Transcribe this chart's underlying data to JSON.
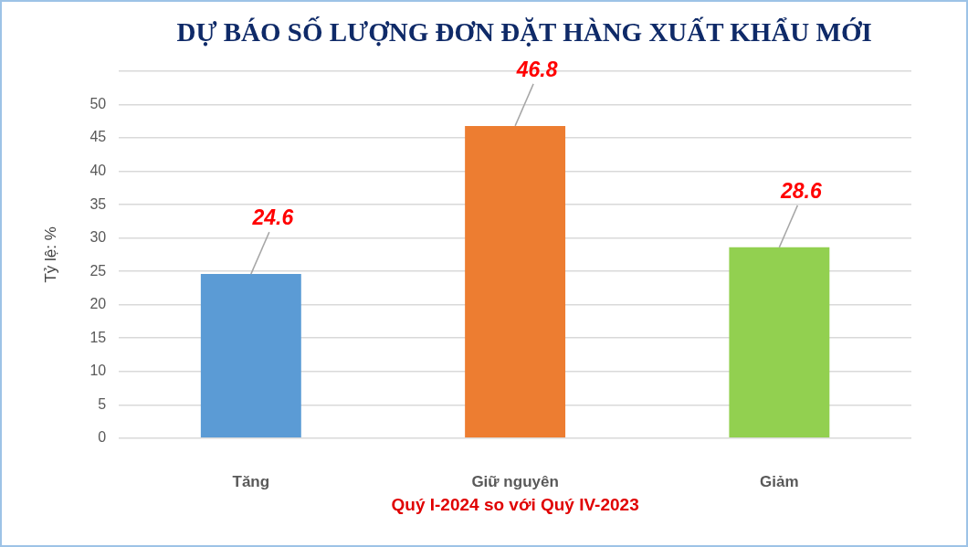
{
  "chart_data": {
    "type": "bar",
    "title": "DỰ BÁO SỐ LƯỢNG ĐƠN ĐẶT HÀNG XUẤT KHẨU MỚI",
    "xlabel": "Quý I-2024 so với Quý IV-2023",
    "ylabel": "Tỷ lệ: %",
    "categories": [
      "Tăng",
      "Giữ nguyên",
      "Giảm"
    ],
    "values": [
      24.6,
      46.8,
      28.6
    ],
    "colors": [
      "#5b9bd5",
      "#ed7d31",
      "#92d050"
    ],
    "ylim": [
      0,
      55
    ],
    "yticks": [
      0,
      5,
      10,
      15,
      20,
      25,
      30,
      35,
      40,
      45,
      50,
      {
        "value": 55,
        "label": null
      }
    ],
    "grid": "y",
    "data_labels": true
  }
}
